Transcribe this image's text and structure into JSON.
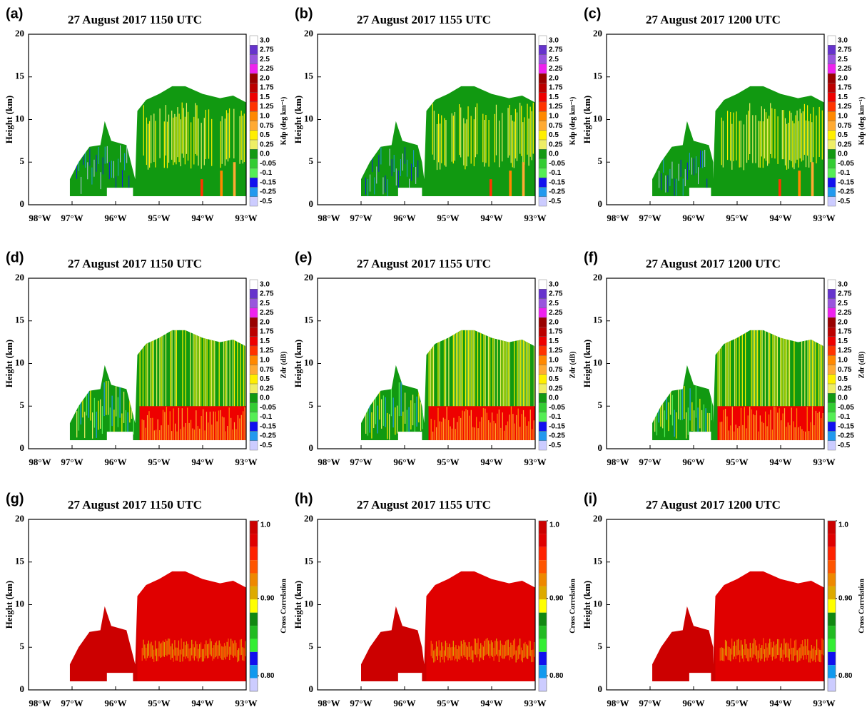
{
  "chart_data": [
    {
      "type": "heatmap",
      "panel_label": "(a)",
      "title": "27 August 2017 1150 UTC",
      "ylabel": "Height (km)",
      "xlim": [
        -98,
        -93
      ],
      "xticks": [
        {
          "value": -98,
          "label": "98°W"
        },
        {
          "value": -97,
          "label": "97°W"
        },
        {
          "value": -96,
          "label": "96°W"
        },
        {
          "value": -95,
          "label": "95°W"
        },
        {
          "value": -94,
          "label": "94°W"
        },
        {
          "value": -93,
          "label": "93°W"
        }
      ],
      "ylim": [
        0,
        20
      ],
      "yticks": [
        0,
        5,
        10,
        15,
        20
      ],
      "colorbar": {
        "label": "Kdp (deg km⁻¹)",
        "levels": [
          {
            "value": 3,
            "label": "3.0"
          },
          2.75,
          2.5,
          2.25,
          {
            "value": 2,
            "label": "2.0"
          },
          1.75,
          1.5,
          1.25,
          {
            "value": 1,
            "label": "1.0"
          },
          0.75,
          0.5,
          0.25,
          {
            "value": 0,
            "label": "0.0"
          },
          -0.05,
          -0.1,
          -0.15,
          -0.25,
          -0.5
        ],
        "colors": [
          "#ffffff",
          "#6633cc",
          "#9955dd",
          "#ee22ee",
          "#990000",
          "#bb0000",
          "#ee0000",
          "#ff3300",
          "#ff8800",
          "#ffaa33",
          "#ffee00",
          "#eeee66",
          "#119911",
          "#33cc33",
          "#55ee55",
          "#1111ee",
          "#2299ee",
          "#ccccff"
        ]
      }
    },
    {
      "type": "heatmap",
      "panel_label": "(b)",
      "title": "27 August 2017 1155 UTC",
      "ylabel": "Height (km)",
      "xlim": [
        -98,
        -93
      ],
      "xticks": [
        {
          "value": -98,
          "label": "98°W"
        },
        {
          "value": -97,
          "label": "97°W"
        },
        {
          "value": -96,
          "label": "96°W"
        },
        {
          "value": -95,
          "label": "95°W"
        },
        {
          "value": -94,
          "label": "94°W"
        },
        {
          "value": -93,
          "label": "93°W"
        }
      ],
      "ylim": [
        0,
        20
      ],
      "yticks": [
        0,
        5,
        10,
        15,
        20
      ],
      "colorbar": {
        "label": "Kdp (deg km⁻¹)",
        "levels": [
          {
            "value": 3,
            "label": "3.0"
          },
          2.75,
          2.5,
          2.25,
          {
            "value": 2,
            "label": "2.0"
          },
          1.75,
          1.5,
          1.25,
          {
            "value": 1,
            "label": "1.0"
          },
          0.75,
          0.5,
          0.25,
          {
            "value": 0,
            "label": "0.0"
          },
          -0.05,
          -0.1,
          -0.15,
          -0.25,
          -0.5
        ],
        "colors": [
          "#ffffff",
          "#6633cc",
          "#9955dd",
          "#ee22ee",
          "#990000",
          "#bb0000",
          "#ee0000",
          "#ff3300",
          "#ff8800",
          "#ffaa33",
          "#ffee00",
          "#eeee66",
          "#119911",
          "#33cc33",
          "#55ee55",
          "#1111ee",
          "#2299ee",
          "#ccccff"
        ]
      }
    },
    {
      "type": "heatmap",
      "panel_label": "(c)",
      "title": "27 August 2017 1200 UTC",
      "ylabel": "Height (km)",
      "xlim": [
        -98,
        -93
      ],
      "xticks": [
        {
          "value": -98,
          "label": "98°W"
        },
        {
          "value": -97,
          "label": "97°W"
        },
        {
          "value": -96,
          "label": "96°W"
        },
        {
          "value": -95,
          "label": "95°W"
        },
        {
          "value": -94,
          "label": "94°W"
        },
        {
          "value": -93,
          "label": "93°W"
        }
      ],
      "ylim": [
        0,
        20
      ],
      "yticks": [
        0,
        5,
        10,
        15,
        20
      ],
      "colorbar": {
        "label": "Kdp (deg km⁻¹)",
        "levels": [
          {
            "value": 3,
            "label": "3.0"
          },
          2.75,
          2.5,
          2.25,
          {
            "value": 2,
            "label": "2.0"
          },
          1.75,
          1.5,
          1.25,
          {
            "value": 1,
            "label": "1.0"
          },
          0.75,
          0.5,
          0.25,
          {
            "value": 0,
            "label": "0.0"
          },
          -0.05,
          -0.1,
          -0.15,
          -0.25,
          -0.5
        ],
        "colors": [
          "#ffffff",
          "#6633cc",
          "#9955dd",
          "#ee22ee",
          "#990000",
          "#bb0000",
          "#ee0000",
          "#ff3300",
          "#ff8800",
          "#ffaa33",
          "#ffee00",
          "#eeee66",
          "#119911",
          "#33cc33",
          "#55ee55",
          "#1111ee",
          "#2299ee",
          "#ccccff"
        ]
      }
    },
    {
      "type": "heatmap",
      "panel_label": "(d)",
      "title": "27 August 2017 1150 UTC",
      "ylabel": "Height (km)",
      "xlim": [
        -98,
        -93
      ],
      "xticks": [
        {
          "value": -98,
          "label": "98°W"
        },
        {
          "value": -97,
          "label": "97°W"
        },
        {
          "value": -96,
          "label": "96°W"
        },
        {
          "value": -95,
          "label": "95°W"
        },
        {
          "value": -94,
          "label": "94°W"
        },
        {
          "value": -93,
          "label": "93°W"
        }
      ],
      "ylim": [
        0,
        20
      ],
      "yticks": [
        0,
        5,
        10,
        15,
        20
      ],
      "colorbar": {
        "label": "Zdr (dB)",
        "levels": [
          {
            "value": 3,
            "label": "3.0"
          },
          2.75,
          2.5,
          2.25,
          {
            "value": 2,
            "label": "2.0"
          },
          1.75,
          1.5,
          1.25,
          {
            "value": 1,
            "label": "1.0"
          },
          0.75,
          0.5,
          0.25,
          {
            "value": 0,
            "label": "0.0"
          },
          -0.05,
          -0.1,
          -0.15,
          -0.25,
          -0.5
        ],
        "colors": [
          "#ffffff",
          "#6633cc",
          "#9955dd",
          "#ee22ee",
          "#990000",
          "#bb0000",
          "#ee0000",
          "#ff3300",
          "#ff8800",
          "#ffaa33",
          "#ffee00",
          "#eeee66",
          "#119911",
          "#33cc33",
          "#55ee55",
          "#1111ee",
          "#2299ee",
          "#ccccff"
        ]
      }
    },
    {
      "type": "heatmap",
      "panel_label": "(e)",
      "title": "27 August 2017 1155 UTC",
      "ylabel": "Height (km)",
      "xlim": [
        -98,
        -93
      ],
      "xticks": [
        {
          "value": -98,
          "label": "98°W"
        },
        {
          "value": -97,
          "label": "97°W"
        },
        {
          "value": -96,
          "label": "96°W"
        },
        {
          "value": -95,
          "label": "95°W"
        },
        {
          "value": -94,
          "label": "94°W"
        },
        {
          "value": -93,
          "label": "93°W"
        }
      ],
      "ylim": [
        0,
        20
      ],
      "yticks": [
        0,
        5,
        10,
        15,
        20
      ],
      "colorbar": {
        "label": "Zdr (dB)",
        "levels": [
          {
            "value": 3,
            "label": "3.0"
          },
          2.75,
          2.5,
          2.25,
          {
            "value": 2,
            "label": "2.0"
          },
          1.75,
          1.5,
          1.25,
          {
            "value": 1,
            "label": "1.0"
          },
          0.75,
          0.5,
          0.25,
          {
            "value": 0,
            "label": "0.0"
          },
          -0.05,
          -0.1,
          -0.15,
          -0.25,
          -0.5
        ],
        "colors": [
          "#ffffff",
          "#6633cc",
          "#9955dd",
          "#ee22ee",
          "#990000",
          "#bb0000",
          "#ee0000",
          "#ff3300",
          "#ff8800",
          "#ffaa33",
          "#ffee00",
          "#eeee66",
          "#119911",
          "#33cc33",
          "#55ee55",
          "#1111ee",
          "#2299ee",
          "#ccccff"
        ]
      }
    },
    {
      "type": "heatmap",
      "panel_label": "(f)",
      "title": "27 August 2017 1200 UTC",
      "ylabel": "Height (km)",
      "xlim": [
        -98,
        -93
      ],
      "xticks": [
        {
          "value": -98,
          "label": "98°W"
        },
        {
          "value": -97,
          "label": "97°W"
        },
        {
          "value": -96,
          "label": "96°W"
        },
        {
          "value": -95,
          "label": "95°W"
        },
        {
          "value": -94,
          "label": "94°W"
        },
        {
          "value": -93,
          "label": "93°W"
        }
      ],
      "ylim": [
        0,
        20
      ],
      "yticks": [
        0,
        5,
        10,
        15,
        20
      ],
      "colorbar": {
        "label": "Zdr (dB)",
        "levels": [
          {
            "value": 3,
            "label": "3.0"
          },
          2.75,
          2.5,
          2.25,
          {
            "value": 2,
            "label": "2.0"
          },
          1.75,
          1.5,
          1.25,
          {
            "value": 1,
            "label": "1.0"
          },
          0.75,
          0.5,
          0.25,
          {
            "value": 0,
            "label": "0.0"
          },
          -0.05,
          -0.1,
          -0.15,
          -0.25,
          -0.5
        ],
        "colors": [
          "#ffffff",
          "#6633cc",
          "#9955dd",
          "#ee22ee",
          "#990000",
          "#bb0000",
          "#ee0000",
          "#ff3300",
          "#ff8800",
          "#ffaa33",
          "#ffee00",
          "#eeee66",
          "#119911",
          "#33cc33",
          "#55ee55",
          "#1111ee",
          "#2299ee",
          "#ccccff"
        ]
      }
    },
    {
      "type": "heatmap",
      "panel_label": "(g)",
      "title": "27 August 2017 1150 UTC",
      "ylabel": "Height (km)",
      "xlim": [
        -98,
        -93
      ],
      "xticks": [
        {
          "value": -98,
          "label": "98°W"
        },
        {
          "value": -97,
          "label": "97°W"
        },
        {
          "value": -96,
          "label": "96°W"
        },
        {
          "value": -95,
          "label": "95°W"
        },
        {
          "value": -94,
          "label": "94°W"
        },
        {
          "value": -93,
          "label": "93°W"
        }
      ],
      "ylim": [
        0,
        20
      ],
      "yticks": [
        0,
        5,
        10,
        15,
        20
      ],
      "colorbar": {
        "label": "Cross Correlation",
        "clim": [
          0.78,
          1
        ],
        "ticks": [
          {
            "value": 1,
            "label": "1.0"
          },
          {
            "value": 0.9,
            "label": "0.90"
          },
          {
            "value": 0.8,
            "label": "0.80"
          }
        ],
        "colors": [
          "#cc0000",
          "#e00000",
          "#ff2200",
          "#ff5500",
          "#ee8800",
          "#ddaa00",
          "#ffff00",
          "#118811",
          "#22bb22",
          "#33ee33",
          "#1010ee",
          "#1199ee",
          "#ccccff"
        ]
      }
    },
    {
      "type": "heatmap",
      "panel_label": "(h)",
      "title": "27 August 2017 1155 UTC",
      "ylabel": "Height (km)",
      "xlim": [
        -98,
        -93
      ],
      "xticks": [
        {
          "value": -98,
          "label": "98°W"
        },
        {
          "value": -97,
          "label": "97°W"
        },
        {
          "value": -96,
          "label": "96°W"
        },
        {
          "value": -95,
          "label": "95°W"
        },
        {
          "value": -94,
          "label": "94°W"
        },
        {
          "value": -93,
          "label": "93°W"
        }
      ],
      "ylim": [
        0,
        20
      ],
      "yticks": [
        0,
        5,
        10,
        15,
        20
      ],
      "colorbar": {
        "label": "Cross Correlation",
        "clim": [
          0.78,
          1
        ],
        "ticks": [
          {
            "value": 1,
            "label": "1.0"
          },
          {
            "value": 0.9,
            "label": "0.90"
          },
          {
            "value": 0.8,
            "label": "0.80"
          }
        ],
        "colors": [
          "#cc0000",
          "#e00000",
          "#ff2200",
          "#ff5500",
          "#ee8800",
          "#ddaa00",
          "#ffff00",
          "#118811",
          "#22bb22",
          "#33ee33",
          "#1010ee",
          "#1199ee",
          "#ccccff"
        ]
      }
    },
    {
      "type": "heatmap",
      "panel_label": "(i)",
      "title": "27 August 2017 1200 UTC",
      "ylabel": "Height (km)",
      "xlim": [
        -98,
        -93
      ],
      "xticks": [
        {
          "value": -98,
          "label": "98°W"
        },
        {
          "value": -97,
          "label": "97°W"
        },
        {
          "value": -96,
          "label": "96°W"
        },
        {
          "value": -95,
          "label": "95°W"
        },
        {
          "value": -94,
          "label": "94°W"
        },
        {
          "value": -93,
          "label": "93°W"
        }
      ],
      "ylim": [
        0,
        20
      ],
      "yticks": [
        0,
        5,
        10,
        15,
        20
      ],
      "colorbar": {
        "label": "Cross Correlation",
        "clim": [
          0.78,
          1
        ],
        "ticks": [
          {
            "value": 1,
            "label": "1.0"
          },
          {
            "value": 0.9,
            "label": "0.90"
          },
          {
            "value": 0.8,
            "label": "0.80"
          }
        ],
        "colors": [
          "#cc0000",
          "#e00000",
          "#ff2200",
          "#ff5500",
          "#ee8800",
          "#ddaa00",
          "#ffff00",
          "#118811",
          "#22bb22",
          "#33ee33",
          "#1010ee",
          "#1199ee",
          "#ccccff"
        ]
      }
    }
  ]
}
